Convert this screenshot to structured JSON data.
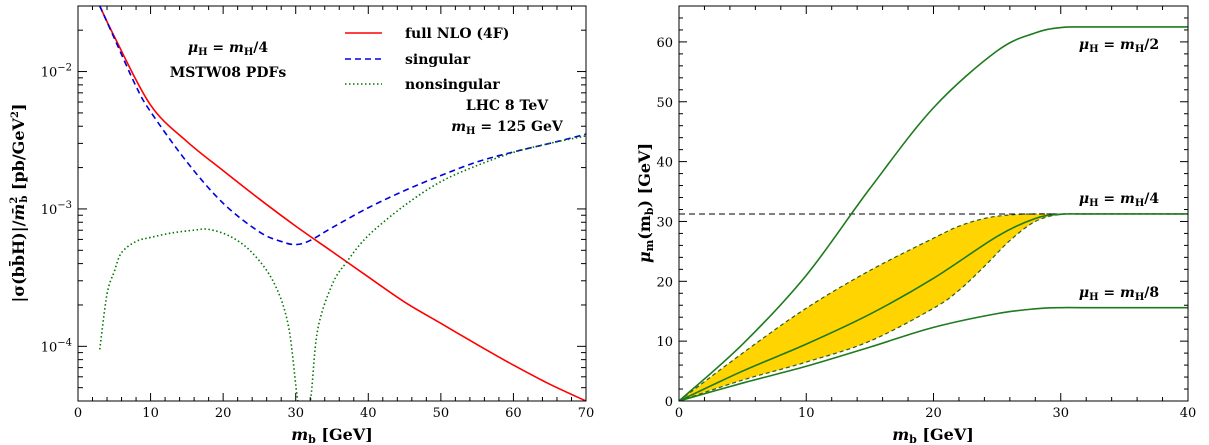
{
  "chart_data": [
    {
      "type": "line",
      "xlabel": "m_b [GeV]",
      "ylabel": "|σ(bb̄H)|/m̄b² [pb/GeV²]",
      "xlim": [
        0,
        70
      ],
      "ylim": [
        4e-05,
        0.03
      ],
      "yscale": "log",
      "grid": false,
      "legend_position": "top-right",
      "x_ticks": [
        0,
        10,
        20,
        30,
        40,
        50,
        60,
        70
      ],
      "y_ticks": [
        {
          "value": 0.0001,
          "base": "10",
          "exp": "−4"
        },
        {
          "value": 0.001,
          "base": "10",
          "exp": "−3"
        },
        {
          "value": 0.01,
          "base": "10",
          "exp": "−2"
        }
      ],
      "annotations": [
        "μH = mH/4",
        "MSTW08 PDFs",
        "LHC 8 TeV",
        "mH = 125 GeV"
      ],
      "series": [
        {
          "name": "full NLO (4F)",
          "color": "#ff0000",
          "style": "solid",
          "x": [
            3,
            5,
            10,
            15,
            20,
            25,
            30,
            35,
            40,
            45,
            50,
            55,
            60,
            65,
            70
          ],
          "y": [
            0.03,
            0.018,
            0.0057,
            0.0031,
            0.0019,
            0.00118,
            0.00075,
            0.00049,
            0.00032,
            0.00021,
            0.000147,
            0.000103,
            7.3e-05,
            5.3e-05,
            4e-05
          ]
        },
        {
          "name": "singular",
          "color": "#0000dd",
          "style": "dashed",
          "x": [
            3,
            5,
            8,
            10,
            15,
            20,
            25,
            28,
            30,
            32,
            35,
            40,
            45,
            50,
            55,
            60,
            65,
            70
          ],
          "y": [
            0.03,
            0.0175,
            0.0078,
            0.0051,
            0.0022,
            0.0011,
            0.00068,
            0.00058,
            0.00055,
            0.00059,
            0.00073,
            0.00102,
            0.00136,
            0.00175,
            0.0022,
            0.0026,
            0.003,
            0.0035
          ]
        },
        {
          "name": "nonsingular",
          "color": "#007700",
          "style": "dotted",
          "x": [
            3,
            4,
            5,
            6,
            8,
            10,
            13,
            16,
            18,
            21,
            24,
            27,
            29,
            30.3,
            31,
            32,
            33,
            35,
            37,
            40,
            45,
            50,
            55,
            60,
            65,
            70
          ],
          "y": [
            9.5e-05,
            0.00024,
            0.00035,
            0.00048,
            0.00058,
            0.00062,
            0.00067,
            0.0007,
            0.00071,
            0.00063,
            0.00048,
            0.00029,
            0.00014,
            4e-05,
            4e-05,
            4e-05,
            0.00013,
            0.00028,
            0.00041,
            0.00064,
            0.00106,
            0.00158,
            0.00207,
            0.00258,
            0.003,
            0.0034
          ]
        }
      ]
    },
    {
      "type": "line",
      "xlabel": "m_b [GeV]",
      "ylabel": "μm(mb) [GeV]",
      "xlim": [
        0,
        40
      ],
      "ylim": [
        0,
        66
      ],
      "grid": false,
      "x_ticks": [
        0,
        10,
        20,
        30,
        40
      ],
      "y_ticks": [
        0,
        10,
        20,
        30,
        40,
        50,
        60
      ],
      "reference_line": {
        "y": 31.25,
        "style": "dashed",
        "color": "#000000"
      },
      "series": [
        {
          "name": "μH = mH/2",
          "color": "#1e7a1e",
          "style": "solid",
          "x": [
            0,
            5,
            10,
            15,
            20,
            25,
            28,
            30,
            32,
            40
          ],
          "y": [
            0,
            9.5,
            21,
            35.5,
            49,
            58.5,
            61.5,
            62.4,
            62.5,
            62.5
          ]
        },
        {
          "name": "μH = mH/4",
          "color": "#1e7a1e",
          "style": "solid",
          "x": [
            0,
            5,
            10,
            15,
            20,
            25,
            28,
            30,
            32,
            40
          ],
          "y": [
            0,
            5,
            9.5,
            14.5,
            20.5,
            27.5,
            30.5,
            31.2,
            31.25,
            31.25
          ]
        },
        {
          "name": "μH = mH/8",
          "color": "#1e7a1e",
          "style": "solid",
          "x": [
            0,
            5,
            10,
            15,
            20,
            25,
            28,
            30,
            32,
            40
          ],
          "y": [
            0,
            3,
            5.8,
            9,
            12.3,
            14.6,
            15.4,
            15.6,
            15.6,
            15.6
          ]
        }
      ],
      "band": {
        "color": "#ffd400",
        "x": [
          0,
          5,
          10,
          15,
          20,
          22,
          24,
          26,
          28,
          30,
          32,
          40
        ],
        "upper": [
          0,
          8,
          15.5,
          21.8,
          27.2,
          29.2,
          30.5,
          31.1,
          31.25,
          31.25,
          31.25,
          31.25
        ],
        "lower": [
          0,
          3.5,
          6.5,
          10,
          15.5,
          18.5,
          22.5,
          26.8,
          30,
          31.2,
          31.25,
          31.25
        ]
      }
    }
  ],
  "legend": {
    "full": "full NLO (4F)",
    "singular": "singular",
    "nonsingular": "nonsingular"
  },
  "left_annotations": {
    "scale_pre": "μ",
    "scale_sub": "H",
    "scale_mid": " = ",
    "scale_m": "m",
    "scale_msub": "H",
    "scale_post": "/4",
    "pdf": "MSTW08 PDFs",
    "lhc": "LHC 8 TeV",
    "mh_pre": "m",
    "mh_sub": "H",
    "mh_post": " = 125 GeV"
  },
  "right_labels": {
    "l2": {
      "sub": "H",
      "m": "m",
      "msub": "H",
      "post": "/2"
    },
    "l4": {
      "sub": "H",
      "m": "m",
      "msub": "H",
      "post": "/4"
    },
    "l8": {
      "sub": "H",
      "m": "m",
      "msub": "H",
      "post": "/8"
    }
  },
  "axes_text": {
    "left_x_var": "m",
    "left_x_sub": "b",
    "left_x_unit": " [GeV]",
    "right_x_var": "m",
    "right_x_sub": "b",
    "right_x_unit": " [GeV]",
    "right_y_var": "μ",
    "right_y_sub": "m",
    "right_y_arg": "(m",
    "right_y_argsub": "b",
    "right_y_unit": ") [GeV]",
    "left_y_pre": "|σ(b",
    "left_y_bbar": "b̄",
    "left_y_mid": "H)|/",
    "left_y_m": "m̄",
    "left_y_msup": "2",
    "left_y_msub": "b",
    "left_y_unit": " [pb/GeV",
    "left_y_unit_sup": "2",
    "left_y_unit_close": "]"
  }
}
